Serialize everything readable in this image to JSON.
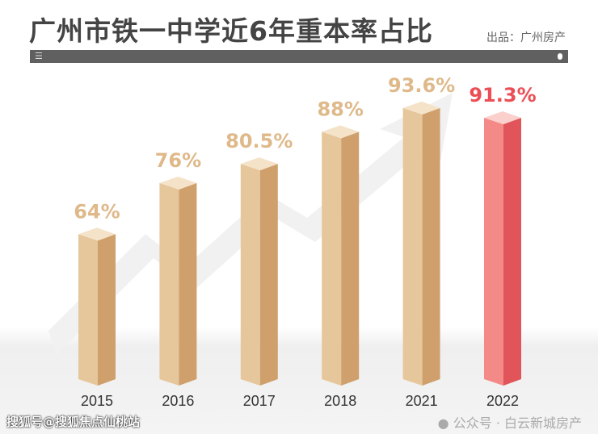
{
  "chart_data": {
    "type": "bar",
    "title": "广州市铁一中学近6年重本率占比",
    "source": "出品：广州房产",
    "categories": [
      "2015",
      "2016",
      "2017",
      "2018",
      "2021",
      "2022"
    ],
    "values": [
      64,
      76,
      80.5,
      88,
      93.6,
      91.3
    ],
    "labels": [
      "64%",
      "76%",
      "80.5%",
      "88%",
      "93.6%",
      "91.3%"
    ],
    "ylim": [
      30,
      100
    ],
    "xlabel": "",
    "ylabel": "",
    "colors": {
      "normal": "#e3c295",
      "highlight": "#f07a7a",
      "label_normal": "#dfb98a",
      "label_highlight": "#ec4e55"
    }
  },
  "watermarks": {
    "sohu": "搜狐号@搜狐焦点仙桃站",
    "wechat": "公众号 · 白云新城房产"
  }
}
